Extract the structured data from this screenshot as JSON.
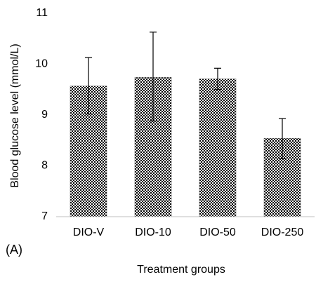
{
  "chart_data": {
    "type": "bar",
    "panel_label": "(A)",
    "xlabel": "Treatment groups",
    "ylabel": "Blood glucose level (mmol/L)",
    "ylim": [
      7,
      11
    ],
    "yticks": [
      "7",
      "8",
      "9",
      "10",
      "11"
    ],
    "categories": [
      "DIO-V",
      "DIO-10",
      "DIO-50",
      "DIO-250"
    ],
    "values": [
      9.57,
      9.74,
      9.71,
      8.54
    ],
    "error_upper": [
      10.13,
      10.63,
      9.92,
      8.93
    ],
    "error_lower": [
      9.02,
      8.88,
      9.5,
      8.14
    ],
    "bar_pattern": "checkerboard",
    "bar_colors": [
      "#000000",
      "#ffffff"
    ],
    "grid": false,
    "legend": "none"
  }
}
